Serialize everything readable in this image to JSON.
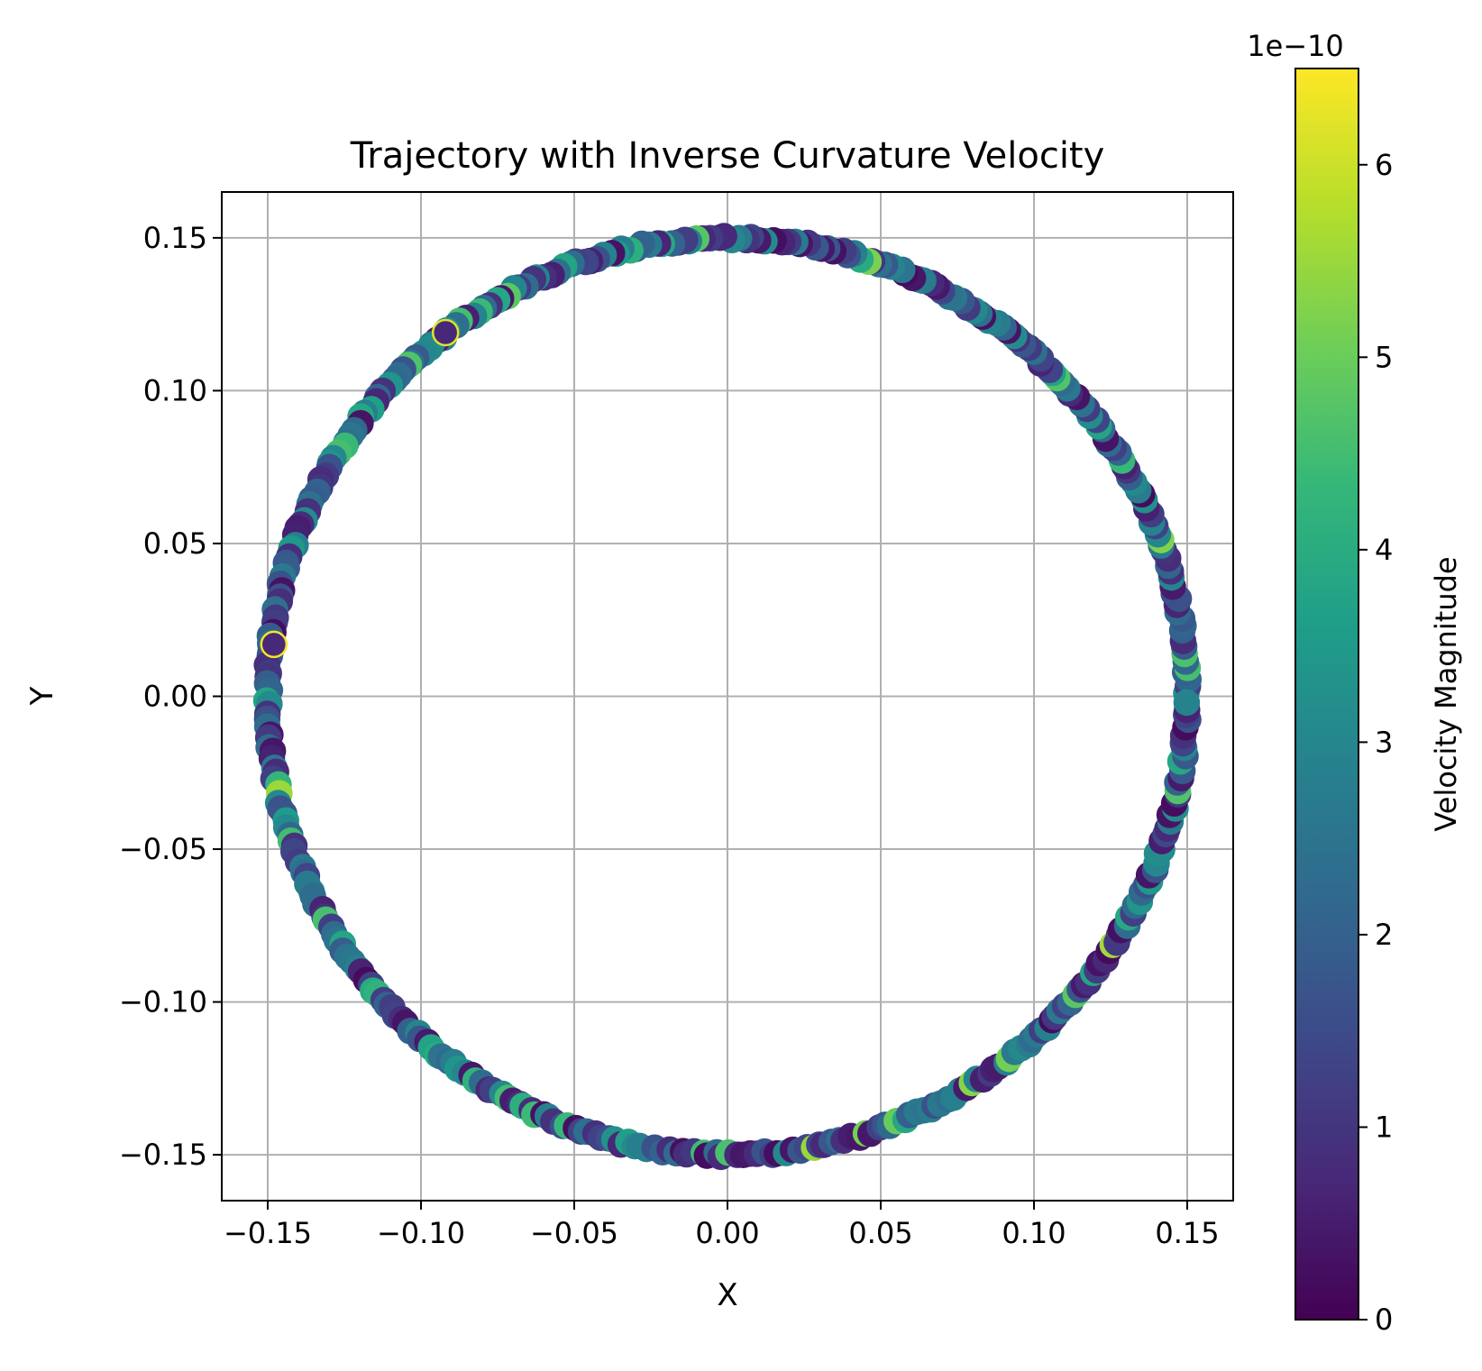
{
  "chart_data": {
    "type": "scatter",
    "title": "Trajectory with Inverse Curvature Velocity",
    "xlabel": "X",
    "ylabel": "Y",
    "xlim": [
      -0.165,
      0.165
    ],
    "ylim": [
      -0.165,
      0.165
    ],
    "xticks": [
      -0.15,
      -0.1,
      -0.05,
      0.0,
      0.05,
      0.1,
      0.15
    ],
    "yticks": [
      -0.15,
      -0.1,
      -0.05,
      0.0,
      0.05,
      0.1,
      0.15
    ],
    "xtick_labels": [
      "−0.15",
      "−0.10",
      "−0.05",
      "0.00",
      "0.05",
      "0.10",
      "0.15"
    ],
    "ytick_labels": [
      "−0.15",
      "−0.10",
      "−0.05",
      "0.00",
      "0.05",
      "0.10",
      "0.15"
    ],
    "grid": true,
    "trajectory": {
      "shape": "circle",
      "center": [
        0,
        0
      ],
      "radius": 0.15,
      "point_count": 420
    },
    "colorbar": {
      "label": "Velocity Magnitude",
      "offset_text": "1e−10",
      "range": [
        0,
        6.5
      ],
      "ticks": [
        0,
        1,
        2,
        3,
        4,
        5,
        6
      ],
      "tick_labels": [
        "0",
        "1",
        "2",
        "3",
        "4",
        "5",
        "6"
      ],
      "colormap": "viridis",
      "colormap_stops": [
        "#440154",
        "#482878",
        "#3e4989",
        "#31688e",
        "#26828e",
        "#1f9e89",
        "#35b779",
        "#6ece58",
        "#b5de2b",
        "#fde725"
      ]
    },
    "highlights": [
      {
        "x": -0.148,
        "y": 0.017,
        "value": 6.4
      },
      {
        "x": -0.092,
        "y": 0.119,
        "value": 6.2
      }
    ]
  }
}
